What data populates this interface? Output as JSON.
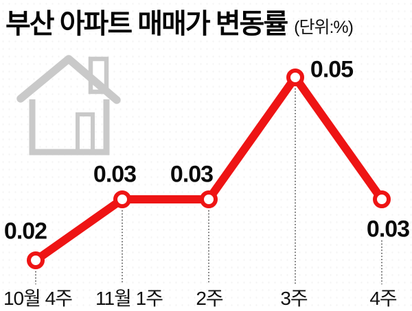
{
  "header": {
    "title": "부산 아파트 매매가 변동률",
    "unit": "(단위:%)"
  },
  "house_icon": {
    "name": "house-icon",
    "color": "#c9c9c9"
  },
  "chart_data": {
    "type": "line",
    "title": "부산 아파트 매매가 변동률",
    "unit_label": "(단위:%)",
    "categories": [
      "10월 4주",
      "11월 1주",
      "2주",
      "3주",
      "4주"
    ],
    "values": [
      0.02,
      0.03,
      0.03,
      0.05,
      0.03
    ],
    "labels": [
      "0.02",
      "0.03",
      "0.03",
      "0.05",
      "0.03"
    ],
    "series": [
      {
        "name": "부산 아파트 매매가 변동률",
        "values": [
          0.02,
          0.03,
          0.03,
          0.05,
          0.03
        ]
      }
    ],
    "line_color": "#ee1414",
    "marker": "open-circle",
    "marker_fill": "#ffffff",
    "leader_line": "dotted",
    "grid": false,
    "legend": false,
    "xlabel": "",
    "ylabel": "",
    "ylim": [
      0,
      0.06
    ]
  }
}
